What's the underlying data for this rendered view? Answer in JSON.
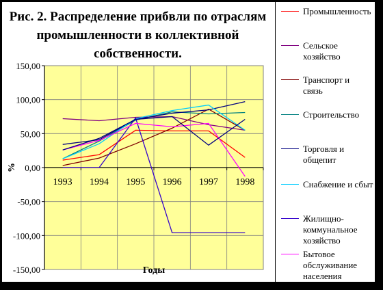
{
  "chart_data": {
    "type": "line",
    "title": [
      "Рис. 2. Распределение прибвли по отраслям",
      "промышленности в коллективной",
      "собственности."
    ],
    "xlabel": "Годы",
    "ylabel": "%",
    "x": [
      "1993",
      "1994",
      "1995",
      "1996",
      "1997",
      "1998"
    ],
    "ylim": [
      -150,
      150
    ],
    "yticks": [
      "150,00",
      "100,00",
      "50,00",
      "0,00",
      "-50,00",
      "-100,00",
      "-150,00"
    ],
    "ytick_values": [
      150,
      100,
      50,
      0,
      -50,
      -100,
      -150
    ],
    "grid": true,
    "legend_position": "right",
    "series": [
      {
        "name": "Промышленность",
        "color": "#ff0000",
        "values": [
          11,
          19,
          55,
          54,
          54,
          15
        ]
      },
      {
        "name": "Сельское\nхозяйство",
        "color": "#800080",
        "values": [
          72,
          69,
          74,
          75,
          63,
          55
        ]
      },
      {
        "name": "Транспорт и\nсвязь",
        "color": "#800000",
        "values": [
          3,
          14,
          35,
          58,
          86,
          55
        ]
      },
      {
        "name": "Строительство",
        "color": "#008080",
        "values": [
          13,
          39,
          70,
          82,
          79,
          81
        ]
      },
      {
        "name": "Торговля и\nобщепит",
        "color": "#000080",
        "values": [
          34,
          41,
          71,
          80,
          85,
          97
        ]
      },
      {
        "name": "Снабжение и сбыт",
        "color": "#00ccff",
        "values": [
          13,
          35,
          72,
          84,
          92,
          55
        ]
      },
      {
        "name": "Жилищно-\nкоммунальное\nхозяйство",
        "color": "#3300cc",
        "values": [
          0,
          0,
          73,
          -96,
          -96,
          -96
        ]
      },
      {
        "name": "Бытовое\nобслуживание\nнаселения",
        "color": "#ff00ff",
        "values": [
          26,
          40,
          65,
          60,
          65,
          -13
        ]
      },
      {
        "name": "",
        "color": "#000080",
        "values": [
          26,
          43,
          71,
          75,
          33,
          71
        ]
      }
    ]
  }
}
